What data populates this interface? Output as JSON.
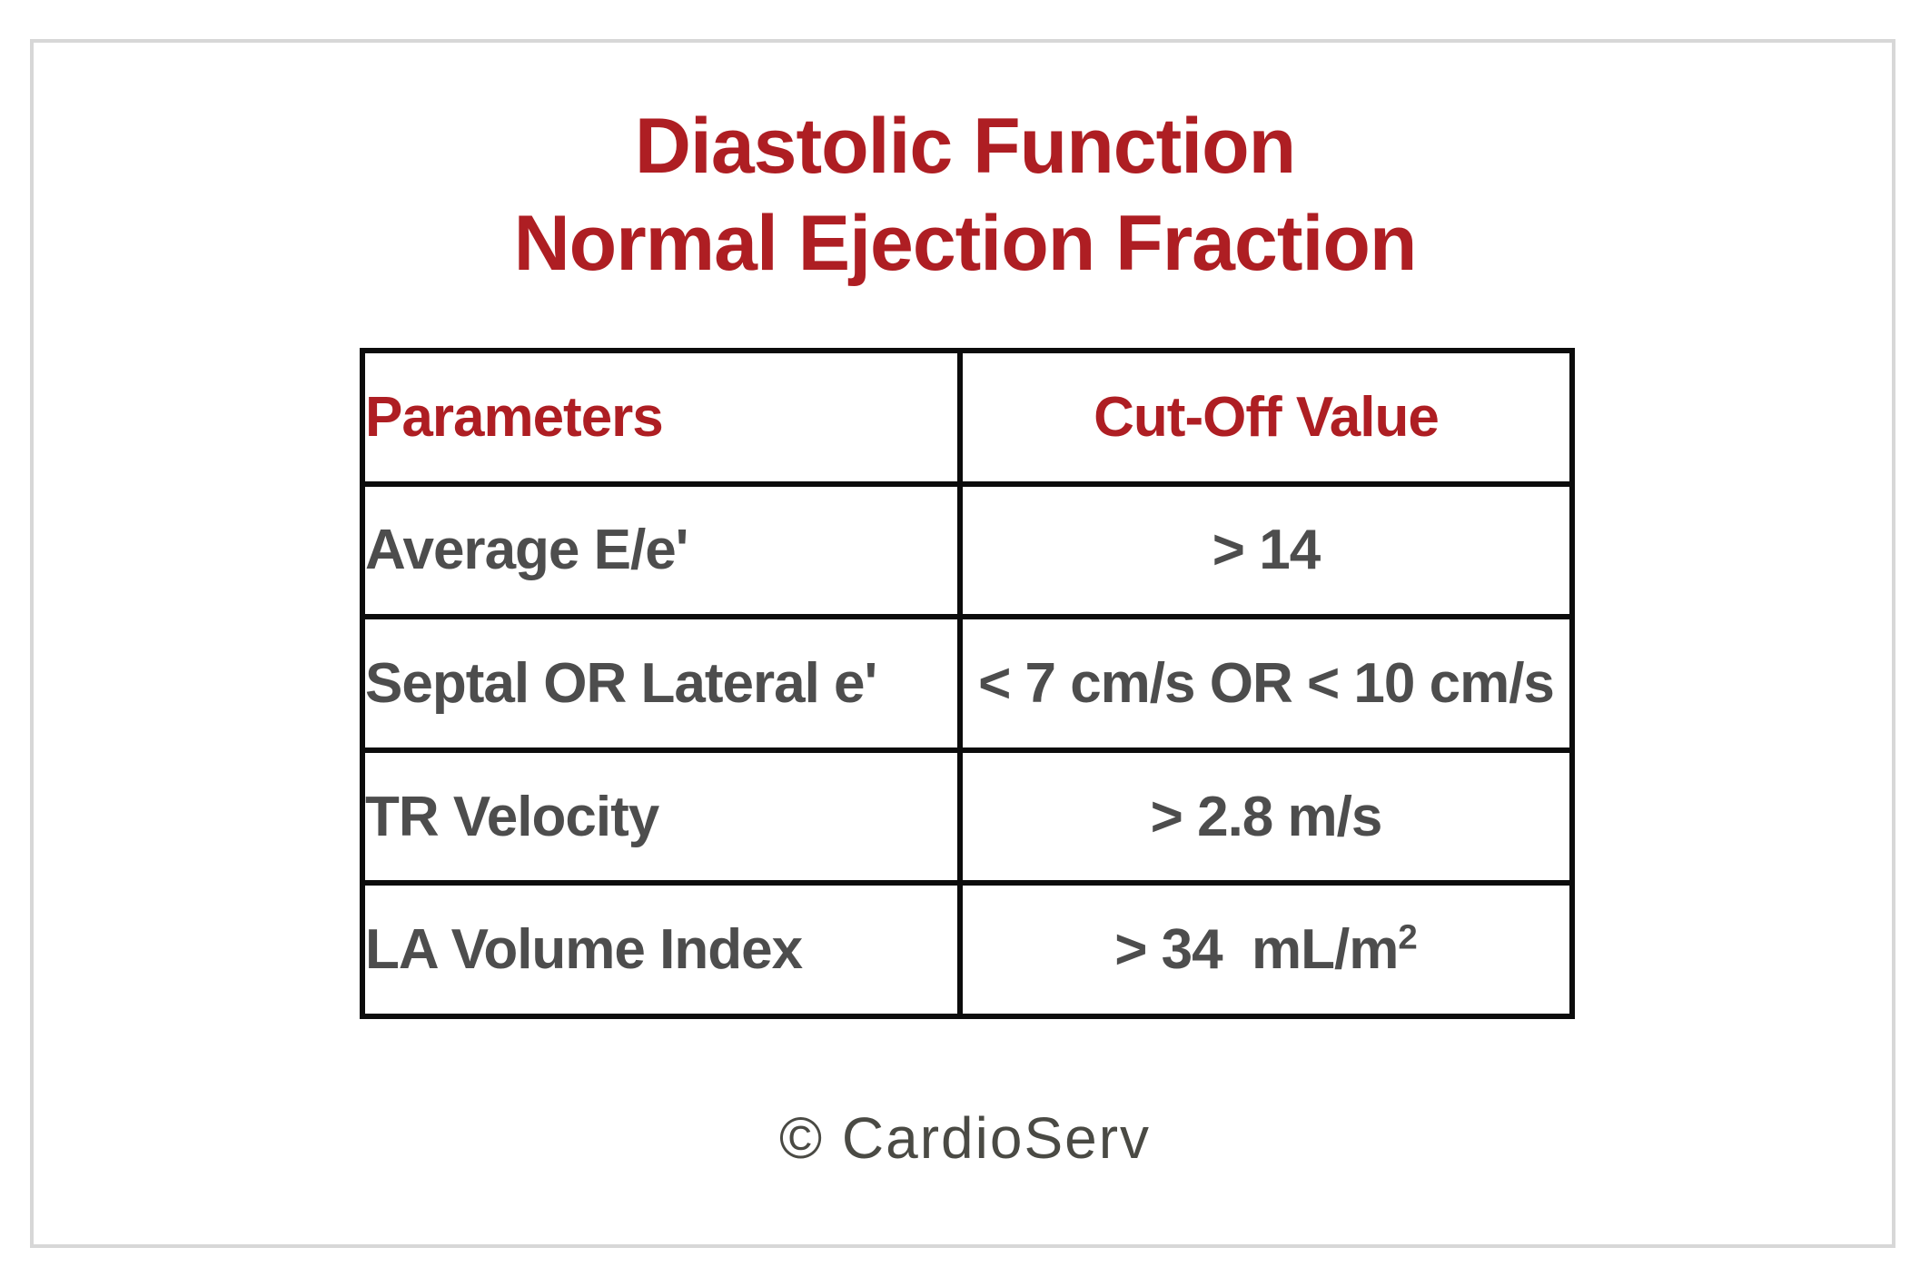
{
  "page": {
    "title_line1": "Diastolic Function",
    "title_line2": "Normal Ejection Fraction",
    "footer": "© CardioServ"
  },
  "table": {
    "headers": {
      "param": "Parameters",
      "value": "Cut-Off Value"
    },
    "rows": [
      {
        "param": "Average E/e'",
        "value": "> 14",
        "value_sup": ""
      },
      {
        "param": "Septal OR Lateral e'",
        "value": "< 7 cm/s OR < 10 cm/s",
        "value_sup": ""
      },
      {
        "param": "TR Velocity",
        "value": "> 2.8 m/s",
        "value_sup": ""
      },
      {
        "param": "LA Volume Index",
        "value": "> 34  mL/m",
        "value_sup": "2"
      }
    ]
  },
  "colors": {
    "accent_red": "#ae1e23",
    "body_text_gray": "#4d4d4d",
    "footer_gray": "#4a4a44",
    "card_border_gray": "#d7d7d7",
    "table_border_black": "#0c0c0c"
  }
}
